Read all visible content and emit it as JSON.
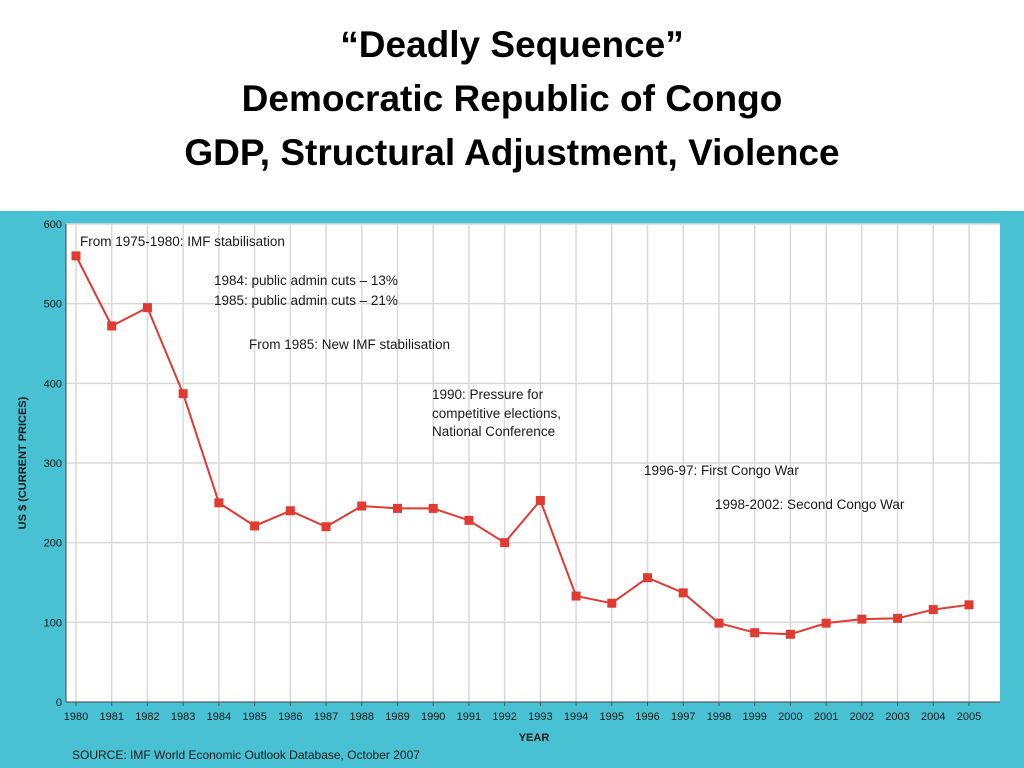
{
  "slide": {
    "title_lines": [
      "“Deadly Sequence”",
      "Democratic Republic of Congo",
      "GDP, Structural Adjustment, Violence"
    ]
  },
  "colors": {
    "panel_background": "#48c1d2",
    "plot_background": "#ffffff",
    "gridline": "#d9d9d9",
    "series": "#e03a31"
  },
  "chart_data": {
    "type": "line",
    "xlabel": "YEAR",
    "ylabel": "US $ (CURRENT PRICES)",
    "ylim": [
      0,
      600
    ],
    "yticks": [
      0,
      100,
      200,
      300,
      400,
      500,
      600
    ],
    "grid": true,
    "x": [
      1980,
      1981,
      1982,
      1983,
      1984,
      1985,
      1986,
      1987,
      1988,
      1989,
      1990,
      1991,
      1992,
      1993,
      1994,
      1995,
      1996,
      1997,
      1998,
      1999,
      2000,
      2001,
      2002,
      2003,
      2004,
      2005
    ],
    "series": [
      {
        "values": [
          560,
          472,
          495,
          387,
          250,
          221,
          240,
          220,
          246,
          243,
          243,
          228,
          200,
          253,
          133,
          124,
          156,
          137,
          99,
          87,
          85,
          99,
          104,
          105,
          116,
          122
        ]
      }
    ],
    "annotations": [
      "From 1975-1980: IMF stabilisation",
      "1984: public admin cuts – 13%",
      "1985: public admin cuts – 21%",
      "From 1985: New IMF stabilisation",
      "1990: Pressure for",
      "competitive elections,",
      "National Conference",
      "1996-97: First Congo War",
      "1998-2002: Second Congo War"
    ],
    "source": "SOURCE: IMF World Economic Outlook Database, October 2007"
  }
}
